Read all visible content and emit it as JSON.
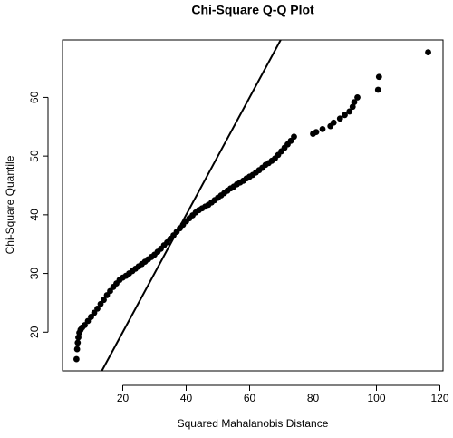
{
  "chart_data": {
    "type": "scatter",
    "title": "Chi-Square Q-Q Plot",
    "x_label": "Squared Mahalanobis Distance",
    "y_label": "Chi-Square Quantile",
    "color": "#000000",
    "x": [
      5.4,
      5.6,
      5.8,
      6,
      6.3,
      6.7,
      7.2,
      8,
      9,
      10,
      11,
      12,
      13,
      14,
      15,
      16,
      17,
      18,
      19,
      20,
      21,
      22,
      23,
      24,
      25,
      26,
      27,
      28,
      29,
      30,
      31,
      32,
      33,
      34,
      35,
      36,
      37,
      38,
      39,
      40,
      41,
      42,
      43,
      44,
      45,
      46,
      47,
      48,
      49,
      50,
      51,
      52,
      53,
      54,
      55,
      56,
      57,
      58,
      59,
      60,
      61,
      62,
      63,
      64,
      65,
      66,
      67,
      68,
      69,
      70,
      71,
      72,
      73,
      74,
      80,
      81,
      83,
      85.5,
      86.5,
      88.5,
      90,
      91.5,
      92.5,
      93,
      94,
      100.5,
      100.8,
      116.3
    ],
    "values": [
      15.4,
      17.1,
      18.2,
      19.1,
      19.9,
      20.4,
      20.8,
      21.2,
      21.9,
      22.6,
      23.3,
      24,
      24.8,
      25.5,
      26.3,
      27,
      27.7,
      28.3,
      28.9,
      29.3,
      29.6,
      30,
      30.4,
      30.8,
      31.2,
      31.6,
      32,
      32.4,
      32.8,
      33.2,
      33.7,
      34.2,
      34.8,
      35.3,
      35.9,
      36.5,
      37.1,
      37.7,
      38.3,
      38.9,
      39.4,
      39.9,
      40.4,
      40.8,
      41.1,
      41.4,
      41.7,
      42.1,
      42.5,
      42.9,
      43.3,
      43.7,
      44.1,
      44.5,
      44.8,
      45.2,
      45.5,
      45.8,
      46.2,
      46.5,
      46.8,
      47.2,
      47.6,
      48,
      48.5,
      48.8,
      49.2,
      49.6,
      50.2,
      50.8,
      51.4,
      52,
      52.6,
      53.3,
      53.8,
      54.1,
      54.6,
      55.1,
      55.7,
      56.4,
      57,
      57.6,
      58.4,
      59.2,
      60,
      61.3,
      63.5,
      67.7
    ],
    "abline": {
      "intercept": 0,
      "slope": 1
    },
    "xlim": [
      1,
      121
    ],
    "ylim": [
      13.4,
      69.8
    ],
    "xticks": [
      20,
      40,
      60,
      80,
      100,
      120
    ],
    "yticks": [
      20,
      30,
      40,
      50,
      60
    ]
  }
}
